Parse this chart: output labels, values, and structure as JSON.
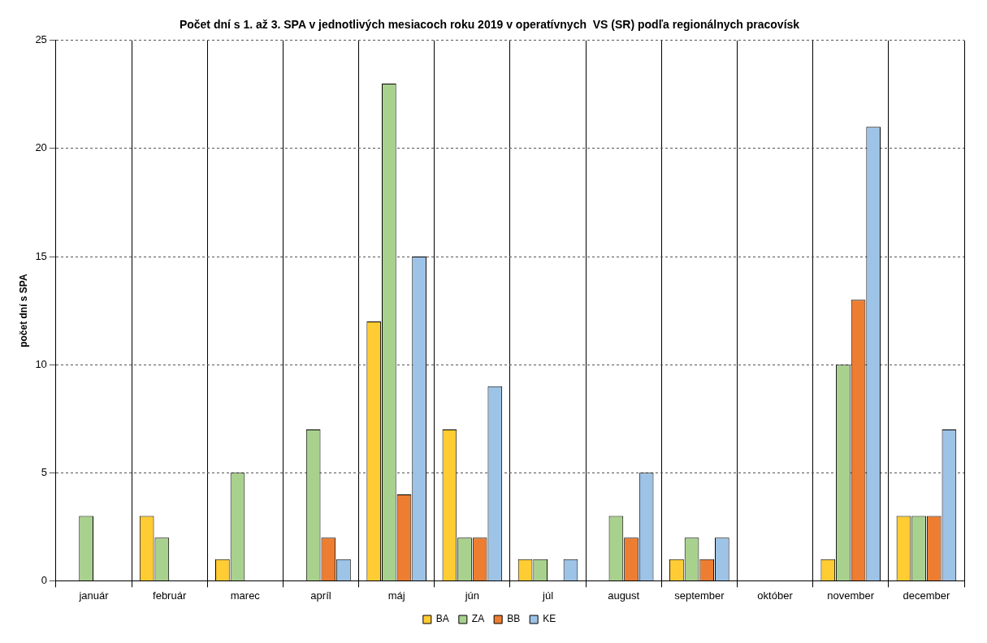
{
  "chart_data": {
    "type": "bar",
    "title": "Počet dní s 1. až 3. SPA v jednotlivých mesiacoch roku 2019 v operatívnych  VS (SR) podľa regionálnych pracovísk",
    "ylabel": "počet dní s SPA",
    "categories": [
      "január",
      "február",
      "marec",
      "apríl",
      "máj",
      "jún",
      "júl",
      "august",
      "september",
      "október",
      "november",
      "december"
    ],
    "series": [
      {
        "name": "BA",
        "color": "#ffcc33",
        "values": [
          0,
          3,
          1,
          0,
          12,
          7,
          1,
          0,
          1,
          0,
          1,
          3
        ]
      },
      {
        "name": "ZA",
        "color": "#a9d18e",
        "values": [
          3,
          2,
          5,
          7,
          23,
          2,
          1,
          3,
          2,
          0,
          10,
          3
        ]
      },
      {
        "name": "BB",
        "color": "#ed7d31",
        "values": [
          0,
          0,
          0,
          2,
          4,
          2,
          0,
          2,
          1,
          0,
          13,
          3
        ]
      },
      {
        "name": "KE",
        "color": "#9dc3e6",
        "values": [
          0,
          0,
          0,
          1,
          15,
          9,
          1,
          5,
          2,
          0,
          21,
          7
        ]
      }
    ],
    "ylim": [
      0,
      25
    ],
    "yticks": [
      0,
      5,
      10,
      15,
      20,
      25
    ],
    "grid": true,
    "legend": "bottom"
  }
}
